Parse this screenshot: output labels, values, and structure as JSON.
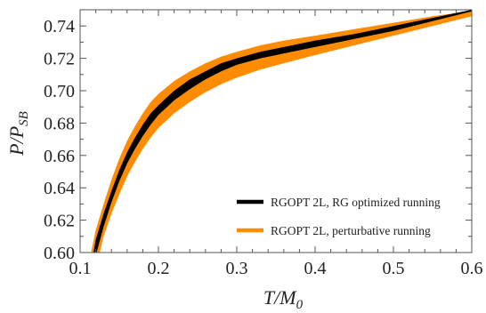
{
  "chart_data": {
    "type": "area",
    "xlabel": {
      "main": "T/M",
      "sub": "0"
    },
    "ylabel": {
      "main": "P/P",
      "sub": "SB"
    },
    "xlim": [
      0.1,
      0.6
    ],
    "ylim": [
      0.6,
      0.75
    ],
    "x_ticks": [
      {
        "value": 0.1,
        "label": "0.1"
      },
      {
        "value": 0.2,
        "label": "0.2"
      },
      {
        "value": 0.3,
        "label": "0.3"
      },
      {
        "value": 0.4,
        "label": "0.4"
      },
      {
        "value": 0.5,
        "label": "0.5"
      },
      {
        "value": 0.6,
        "label": "0.6"
      }
    ],
    "y_ticks": [
      {
        "value": 0.6,
        "label": "0.60"
      },
      {
        "value": 0.62,
        "label": "0.62"
      },
      {
        "value": 0.64,
        "label": "0.64"
      },
      {
        "value": 0.66,
        "label": "0.66"
      },
      {
        "value": 0.68,
        "label": "0.68"
      },
      {
        "value": 0.7,
        "label": "0.70"
      },
      {
        "value": 0.72,
        "label": "0.72"
      },
      {
        "value": 0.74,
        "label": "0.74"
      }
    ],
    "grid": false,
    "legend_position": "bottom-right",
    "series": [
      {
        "name": "RGOPT 2L, perturbative running",
        "color": "#ff8c00",
        "upper": [
          [
            0.114,
            0.6
          ],
          [
            0.12,
            0.614
          ],
          [
            0.13,
            0.63
          ],
          [
            0.14,
            0.645
          ],
          [
            0.15,
            0.658
          ],
          [
            0.16,
            0.669
          ],
          [
            0.17,
            0.678
          ],
          [
            0.18,
            0.686
          ],
          [
            0.19,
            0.693
          ],
          [
            0.2,
            0.698
          ],
          [
            0.22,
            0.706
          ],
          [
            0.24,
            0.712
          ],
          [
            0.26,
            0.717
          ],
          [
            0.28,
            0.721
          ],
          [
            0.3,
            0.724
          ],
          [
            0.33,
            0.728
          ],
          [
            0.36,
            0.731
          ],
          [
            0.4,
            0.734
          ],
          [
            0.45,
            0.738
          ],
          [
            0.5,
            0.742
          ],
          [
            0.55,
            0.746
          ],
          [
            0.58,
            0.748
          ],
          [
            0.6,
            0.749
          ]
        ],
        "lower": [
          [
            0.125,
            0.6
          ],
          [
            0.13,
            0.61
          ],
          [
            0.14,
            0.624
          ],
          [
            0.15,
            0.636
          ],
          [
            0.16,
            0.647
          ],
          [
            0.17,
            0.656
          ],
          [
            0.18,
            0.664
          ],
          [
            0.19,
            0.671
          ],
          [
            0.2,
            0.677
          ],
          [
            0.22,
            0.686
          ],
          [
            0.24,
            0.693
          ],
          [
            0.26,
            0.699
          ],
          [
            0.28,
            0.704
          ],
          [
            0.3,
            0.708
          ],
          [
            0.33,
            0.713
          ],
          [
            0.36,
            0.717
          ],
          [
            0.4,
            0.722
          ],
          [
            0.45,
            0.728
          ],
          [
            0.5,
            0.734
          ],
          [
            0.55,
            0.74
          ],
          [
            0.6,
            0.746
          ]
        ]
      },
      {
        "name": "RGOPT 2L, RG optimized running",
        "color": "#000000",
        "upper": [
          [
            0.117,
            0.6
          ],
          [
            0.12,
            0.608
          ],
          [
            0.13,
            0.624
          ],
          [
            0.14,
            0.638
          ],
          [
            0.15,
            0.651
          ],
          [
            0.16,
            0.662
          ],
          [
            0.17,
            0.671
          ],
          [
            0.18,
            0.679
          ],
          [
            0.19,
            0.686
          ],
          [
            0.2,
            0.691
          ],
          [
            0.22,
            0.7
          ],
          [
            0.24,
            0.707
          ],
          [
            0.26,
            0.712
          ],
          [
            0.28,
            0.717
          ],
          [
            0.3,
            0.72
          ],
          [
            0.33,
            0.724
          ],
          [
            0.36,
            0.727
          ],
          [
            0.4,
            0.731
          ],
          [
            0.45,
            0.735
          ],
          [
            0.5,
            0.74
          ],
          [
            0.55,
            0.745
          ],
          [
            0.6,
            0.75
          ]
        ],
        "lower": [
          [
            0.121,
            0.6
          ],
          [
            0.13,
            0.616
          ],
          [
            0.14,
            0.631
          ],
          [
            0.15,
            0.644
          ],
          [
            0.16,
            0.655
          ],
          [
            0.17,
            0.664
          ],
          [
            0.18,
            0.672
          ],
          [
            0.19,
            0.679
          ],
          [
            0.2,
            0.685
          ],
          [
            0.22,
            0.694
          ],
          [
            0.24,
            0.701
          ],
          [
            0.26,
            0.707
          ],
          [
            0.28,
            0.712
          ],
          [
            0.3,
            0.716
          ],
          [
            0.33,
            0.72
          ],
          [
            0.36,
            0.723
          ],
          [
            0.4,
            0.727
          ],
          [
            0.45,
            0.732
          ],
          [
            0.5,
            0.737
          ],
          [
            0.55,
            0.743
          ],
          [
            0.6,
            0.749
          ]
        ]
      }
    ],
    "legend": [
      {
        "name": "RGOPT 2L, RG optimized running",
        "color": "#000000"
      },
      {
        "name": "RGOPT 2L, perturbative running",
        "color": "#ff8c00"
      }
    ]
  }
}
